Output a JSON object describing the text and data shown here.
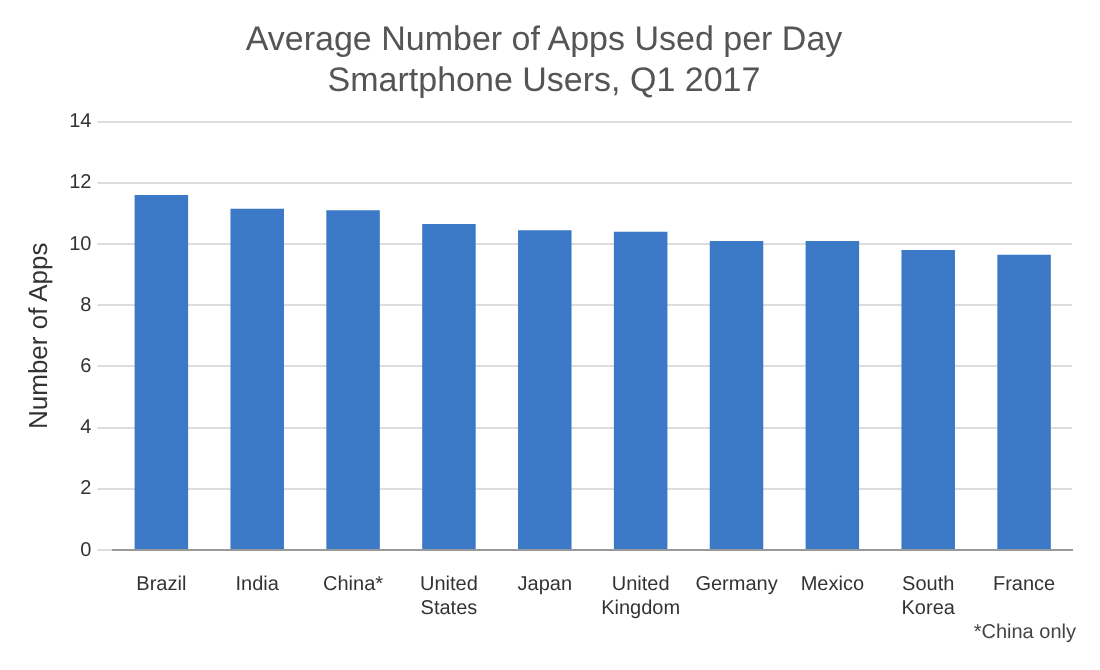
{
  "chart_data": {
    "type": "bar",
    "title": "Average Number of Apps Used per Day",
    "subtitle": "Smartphone Users, Q1 2017",
    "ylabel": "Number of Apps",
    "categories": [
      "Brazil",
      "India",
      "China*",
      "United States",
      "Japan",
      "United Kingdom",
      "Germany",
      "Mexico",
      "South Korea",
      "France"
    ],
    "values": [
      11.6,
      11.15,
      11.1,
      10.65,
      10.45,
      10.4,
      10.1,
      10.1,
      9.8,
      9.65
    ],
    "color": "#3b78c6",
    "ylim": [
      0,
      14
    ],
    "yticks": [
      0,
      2,
      4,
      6,
      8,
      10,
      12,
      14
    ],
    "grid": "y",
    "annotations": [
      "*China only"
    ]
  }
}
